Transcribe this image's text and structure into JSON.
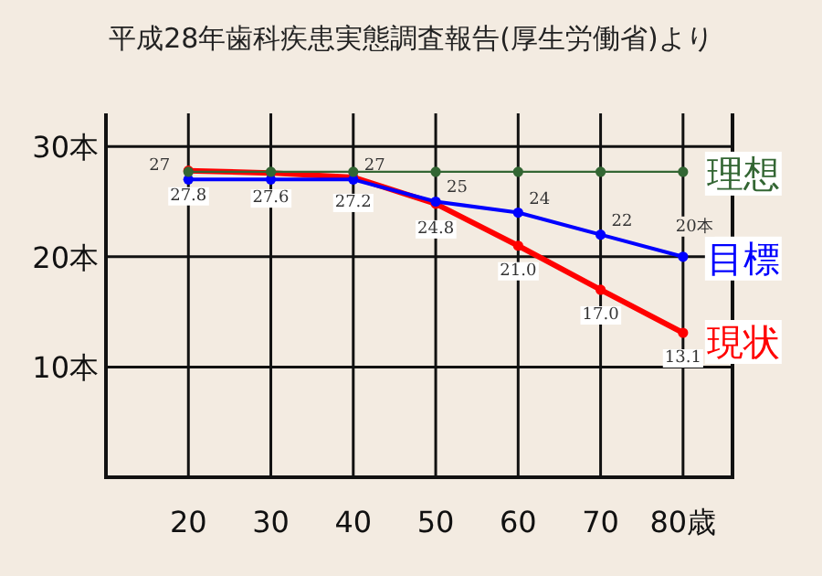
{
  "chart_data": {
    "type": "line",
    "title": "平成28年歯科疾患実態調査報告(厚生労働省)より",
    "x": [
      20,
      30,
      40,
      50,
      60,
      70,
      80
    ],
    "xlim": [
      10,
      86
    ],
    "ylim": [
      0,
      33
    ],
    "xticks": [
      20,
      30,
      40,
      50,
      60,
      70,
      {
        "value": 80,
        "label": "80歳"
      }
    ],
    "yticks": [
      {
        "value": 10,
        "label": "10本"
      },
      {
        "value": 20,
        "label": "20本"
      },
      {
        "value": 30,
        "label": "30本"
      }
    ],
    "grid": true,
    "marker": "circle",
    "series": [
      {
        "name": "理想",
        "color": "#336633",
        "values": [
          27.7,
          27.7,
          27.7,
          27.7,
          27.7,
          27.7,
          27.7
        ]
      },
      {
        "name": "目標",
        "color": "#0000ff",
        "values": [
          27,
          27,
          27,
          25,
          24,
          22,
          20
        ],
        "value_labels": [
          "27",
          null,
          "27",
          "25",
          "24",
          "22",
          "20本"
        ]
      },
      {
        "name": "現状",
        "color": "#ff0000",
        "values": [
          27.8,
          27.6,
          27.2,
          24.8,
          21.0,
          17.0,
          13.1
        ],
        "value_labels": [
          "27.8",
          "27.6",
          "27.2",
          "24.8",
          "21.0",
          "17.0",
          "13.1"
        ]
      }
    ]
  }
}
